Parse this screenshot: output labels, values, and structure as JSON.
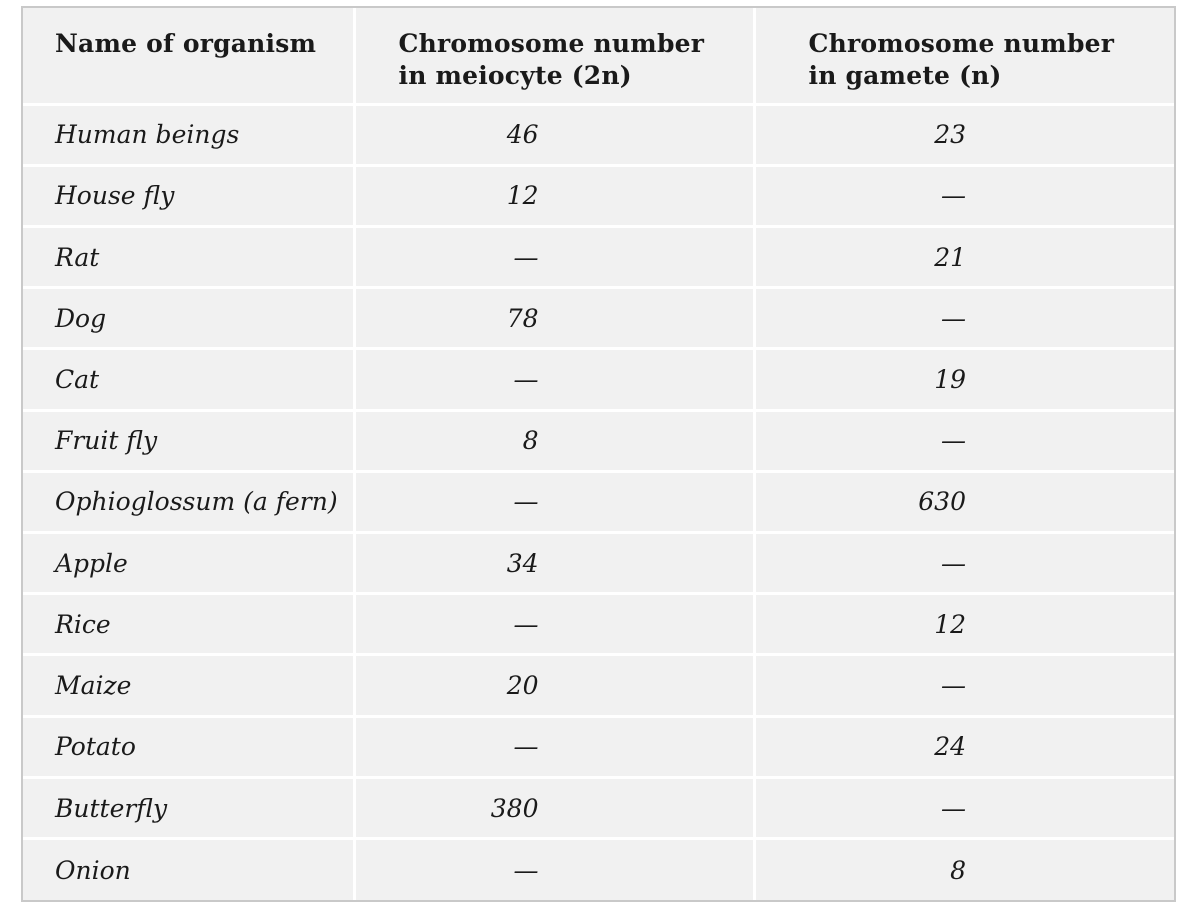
{
  "table": {
    "headers": {
      "name": "Name of organism",
      "meiocyte_line1": "Chromosome number",
      "meiocyte_line2": "in meiocyte (2n)",
      "gamete_line1": "Chromosome number",
      "gamete_line2": "in gamete (n)"
    },
    "rows": [
      {
        "organism": "Human beings",
        "meiocyte": "46",
        "gamete": "23"
      },
      {
        "organism": "House fly",
        "meiocyte": "12",
        "gamete": "—"
      },
      {
        "organism": "Rat",
        "meiocyte": "—",
        "gamete": "21"
      },
      {
        "organism": "Dog",
        "meiocyte": "78",
        "gamete": "—"
      },
      {
        "organism": "Cat",
        "meiocyte": "—",
        "gamete": "19"
      },
      {
        "organism": "Fruit fly",
        "meiocyte": "8",
        "gamete": "—"
      },
      {
        "organism": "Ophioglossum (a fern)",
        "meiocyte": "—",
        "gamete": "630"
      },
      {
        "organism": "Apple",
        "meiocyte": "34",
        "gamete": "—"
      },
      {
        "organism": "Rice",
        "meiocyte": "—",
        "gamete": "12"
      },
      {
        "organism": "Maize",
        "meiocyte": "20",
        "gamete": "—"
      },
      {
        "organism": "Potato",
        "meiocyte": "—",
        "gamete": "24"
      },
      {
        "organism": "Butterfly",
        "meiocyte": "380",
        "gamete": "—"
      },
      {
        "organism": "Onion",
        "meiocyte": "—",
        "gamete": "8"
      }
    ]
  }
}
